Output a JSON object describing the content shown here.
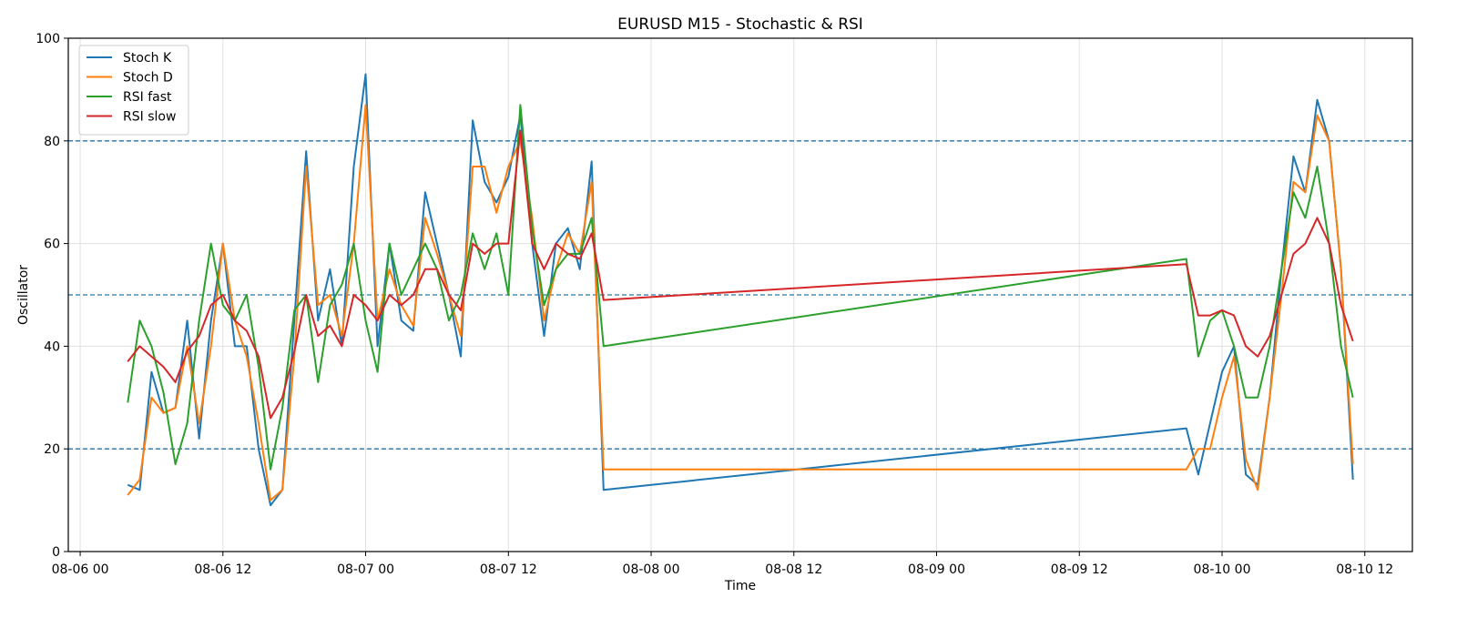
{
  "chart_data": {
    "type": "line",
    "title": "EURUSD M15 - Stochastic & RSI",
    "x_label": "Time",
    "y_label": "Oscillator",
    "x": [
      "08-06 04",
      "08-06 05",
      "08-06 06",
      "08-06 07",
      "08-06 08",
      "08-06 09",
      "08-06 10",
      "08-06 11",
      "08-06 12",
      "08-06 13",
      "08-06 14",
      "08-06 15",
      "08-06 16",
      "08-06 17",
      "08-06 18",
      "08-06 19",
      "08-06 20",
      "08-06 21",
      "08-06 22",
      "08-06 23",
      "08-07 00",
      "08-07 01",
      "08-07 02",
      "08-07 03",
      "08-07 04",
      "08-07 05",
      "08-07 06",
      "08-07 07",
      "08-07 08",
      "08-07 09",
      "08-07 10",
      "08-07 11",
      "08-07 12",
      "08-07 13",
      "08-07 14",
      "08-07 15",
      "08-07 16",
      "08-07 17",
      "08-07 18",
      "08-07 19",
      "08-07 20",
      "08-09 21",
      "08-09 22",
      "08-09 23",
      "08-10 00",
      "08-10 01",
      "08-10 02",
      "08-10 03",
      "08-10 04",
      "08-10 05",
      "08-10 06",
      "08-10 07",
      "08-10 08",
      "08-10 09",
      "08-10 10",
      "08-10 11"
    ],
    "series": [
      {
        "name": "Stoch K",
        "color": "#1f77b4",
        "values": [
          13,
          12,
          35,
          27,
          28,
          45,
          22,
          45,
          60,
          40,
          40,
          20,
          9,
          12,
          45,
          78,
          45,
          55,
          40,
          75,
          93,
          40,
          60,
          45,
          43,
          70,
          60,
          50,
          38,
          84,
          72,
          68,
          73,
          85,
          60,
          42,
          60,
          63,
          55,
          76,
          12,
          24,
          15,
          25,
          35,
          40,
          15,
          13,
          30,
          55,
          77,
          70,
          88,
          80,
          55,
          14
        ]
      },
      {
        "name": "Stoch D",
        "color": "#ff7f0e",
        "values": [
          11,
          14,
          30,
          27,
          28,
          40,
          25,
          40,
          60,
          45,
          38,
          25,
          10,
          12,
          38,
          75,
          48,
          50,
          42,
          60,
          87,
          45,
          55,
          48,
          44,
          65,
          58,
          50,
          42,
          75,
          75,
          66,
          75,
          80,
          65,
          45,
          55,
          62,
          58,
          72,
          16,
          16,
          20,
          20,
          30,
          38,
          18,
          12,
          30,
          50,
          72,
          70,
          85,
          80,
          55,
          17
        ]
      },
      {
        "name": "RSI fast",
        "color": "#2ca02c",
        "values": [
          29,
          45,
          40,
          31,
          17,
          25,
          45,
          60,
          48,
          45,
          50,
          36,
          16,
          28,
          47,
          50,
          33,
          48,
          52,
          60,
          45,
          35,
          60,
          50,
          55,
          60,
          55,
          45,
          50,
          62,
          55,
          62,
          50,
          87,
          63,
          48,
          55,
          58,
          58,
          65,
          40,
          57,
          38,
          45,
          47,
          40,
          30,
          30,
          40,
          55,
          70,
          65,
          75,
          60,
          40,
          30
        ]
      },
      {
        "name": "RSI slow",
        "color": "#d62728",
        "values": [
          37,
          40,
          38,
          36,
          33,
          39,
          42,
          48,
          50,
          45,
          43,
          38,
          26,
          30,
          39,
          50,
          42,
          44,
          40,
          50,
          48,
          45,
          50,
          48,
          50,
          55,
          55,
          50,
          47,
          60,
          58,
          60,
          60,
          82,
          60,
          55,
          60,
          58,
          57,
          62,
          49,
          56,
          46,
          46,
          47,
          46,
          40,
          38,
          42,
          50,
          58,
          60,
          65,
          60,
          48,
          41
        ]
      }
    ],
    "xlim": [
      "08-05 23",
      "08-10 16"
    ],
    "xticks": [
      "08-06 00",
      "08-06 12",
      "08-07 00",
      "08-07 12",
      "08-08 00",
      "08-08 12",
      "08-09 00",
      "08-09 12",
      "08-10 00",
      "08-10 12"
    ],
    "ylim": [
      0,
      100
    ],
    "yticks": [
      0,
      20,
      40,
      60,
      80,
      100
    ],
    "hlines": [
      20,
      50,
      80
    ],
    "hline_color": "#1f77b4",
    "grid": true,
    "legend": "upper left"
  }
}
